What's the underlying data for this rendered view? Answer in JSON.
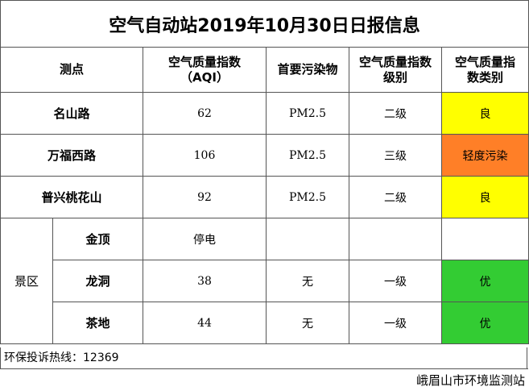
{
  "title": "空气自动站2019年10月30日日报信息",
  "table": {
    "header": [
      [
        "测点"
      ],
      [
        "空气质量指数",
        "（AQI）"
      ],
      [
        "首要污染物"
      ],
      [
        "空气质量指数",
        "级别"
      ],
      [
        "空气质量指",
        "数类别"
      ]
    ],
    "rows": [
      {
        "name": "名山路",
        "aqi": 62,
        "pollutant": "PM2.5",
        "level": "二级",
        "category": "良",
        "color": "#ffff00"
      },
      {
        "name": "万福西路",
        "aqi": 106,
        "pollutant": "PM2.5",
        "level": "三级",
        "category": "轻度污染",
        "color": "#ff7f27"
      },
      {
        "name": "普兴桃花山",
        "aqi": 92,
        "pollutant": "PM2.5",
        "level": "二级",
        "category": "良",
        "color": "#ffff00"
      }
    ],
    "group": {
      "name": "景区",
      "rows": [
        {
          "name": "金顶",
          "aqi": "停电"
        },
        {
          "name": "龙洞",
          "aqi": 38,
          "pollutant": "无",
          "level": "一级",
          "category": "优",
          "color": "#33cc33"
        },
        {
          "name": "茶地",
          "aqi": 44,
          "pollutant": "无",
          "level": "一级",
          "category": "优",
          "color": "#33cc33"
        }
      ]
    }
  },
  "footer": {
    "hotline": "环保投诉热线：12369",
    "agency": "峨眉山市环境监测站"
  }
}
